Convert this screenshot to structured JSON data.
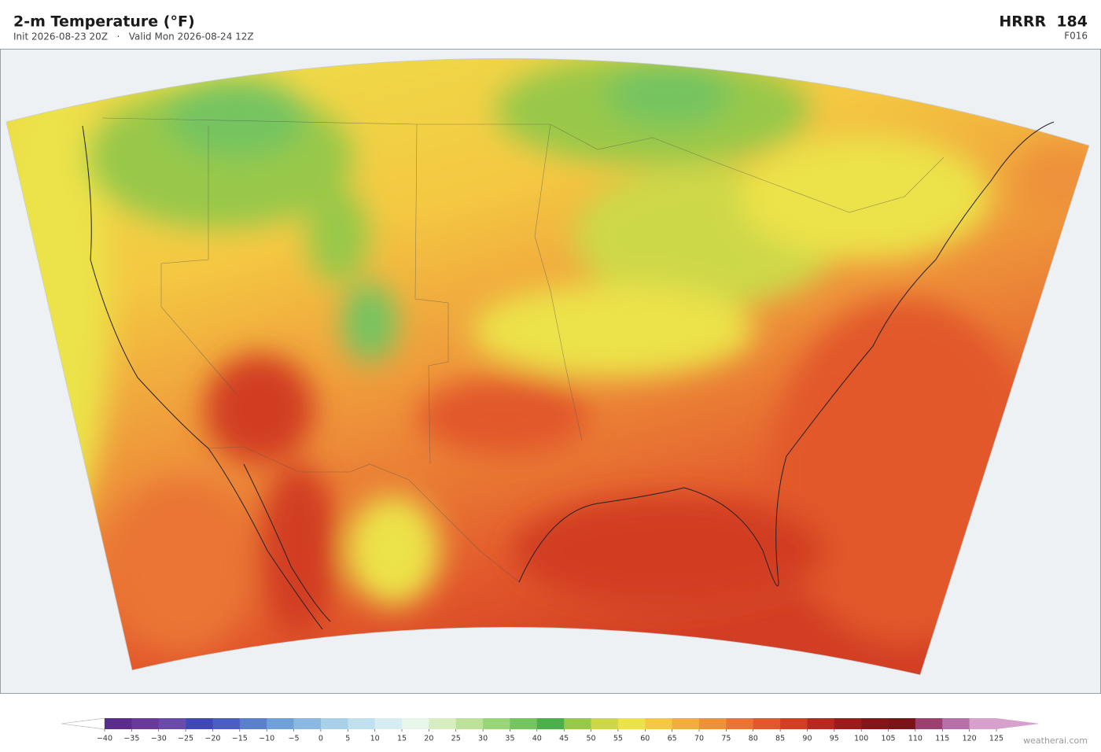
{
  "header": {
    "title": "2-m Temperature  (°F)",
    "subtitle": "Init 2026-08-23 20Z   ·   Valid Mon 2026-08-24 12Z",
    "model": "HRRR  184",
    "forecast": "F016"
  },
  "colorbar": {
    "ticks": [
      {
        "value": -40,
        "label": "−40"
      },
      {
        "value": -35,
        "label": "−35"
      },
      {
        "value": -30,
        "label": "−30"
      },
      {
        "value": -25,
        "label": "−25"
      },
      {
        "value": -20,
        "label": "−20"
      },
      {
        "value": -15,
        "label": "−15"
      },
      {
        "value": -10,
        "label": "−10"
      },
      {
        "value": -5,
        "label": "−5"
      },
      0,
      5,
      10,
      15,
      20,
      25,
      30,
      35,
      40,
      45,
      50,
      55,
      60,
      65,
      70,
      75,
      80,
      85,
      90,
      95,
      100,
      105,
      110,
      115,
      120,
      125
    ],
    "colors": [
      "#5a2d8c",
      "#6a3a9a",
      "#6a4aaa",
      "#4048b8",
      "#4a5ec4",
      "#5a80cc",
      "#70a0d8",
      "#8ab8e0",
      "#a8d0e8",
      "#c0e0ee",
      "#d6eef2",
      "#e6f6e8",
      "#d6eec0",
      "#bce29a",
      "#98d478",
      "#74c460",
      "#4cb04a",
      "#98c84a",
      "#cdd848",
      "#ece24a",
      "#f4c842",
      "#f2ac3e",
      "#ee923a",
      "#ea7434",
      "#e2582c",
      "#d23e24",
      "#b82820",
      "#9c1c1c",
      "#84161a",
      "#7a1418",
      "#9c4070",
      "#b870a8",
      "#d8a0cc"
    ],
    "under_color": "#ffffff",
    "over_color": "#d8a0cc"
  },
  "watermark": "weatherai.com"
}
